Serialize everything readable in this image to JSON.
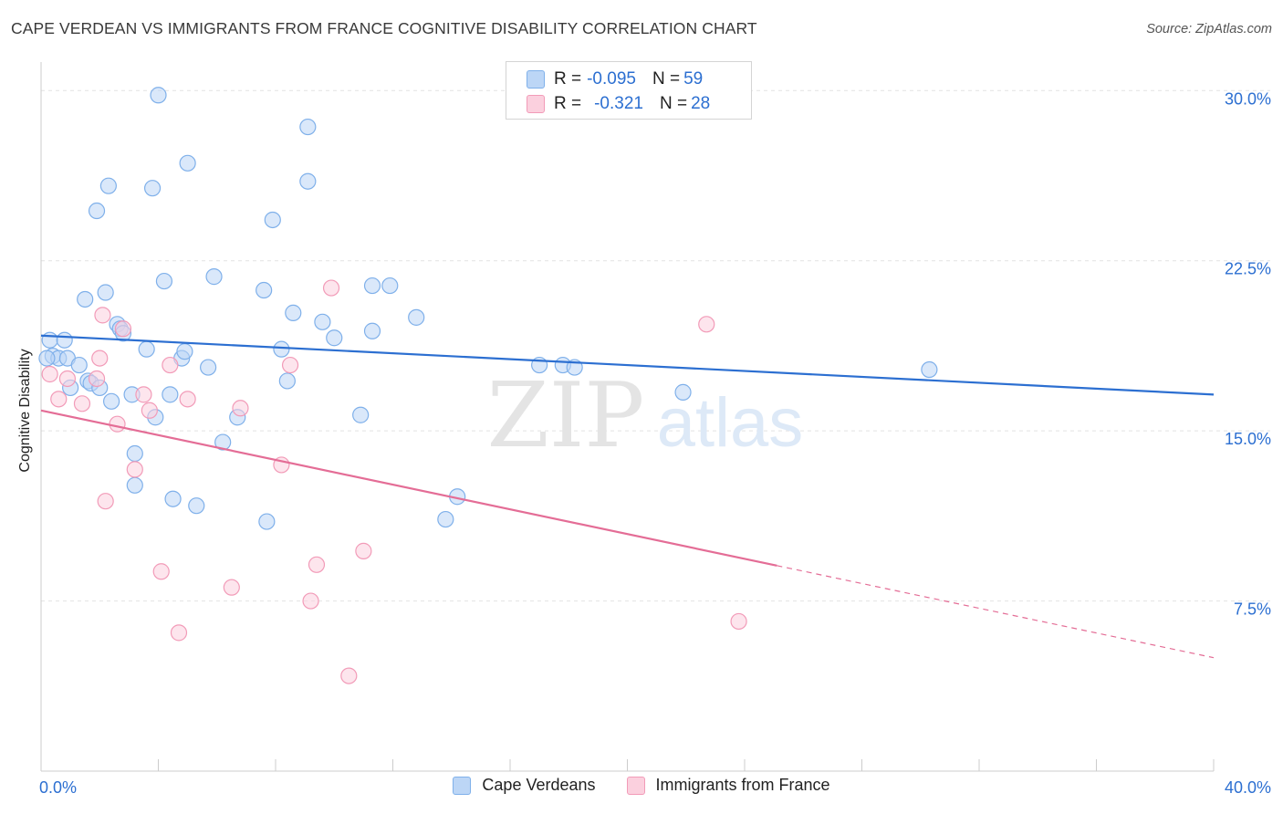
{
  "header": {
    "title": "CAPE VERDEAN VS IMMIGRANTS FROM FRANCE COGNITIVE DISABILITY CORRELATION CHART",
    "source": "Source: ZipAtlas.com"
  },
  "watermark": {
    "zip": "ZIP",
    "atlas": "atlas"
  },
  "stats": [
    {
      "r_label": "R = ",
      "r_value": "-0.095",
      "n_label": "N = ",
      "n_value": "59",
      "color": "#7fb0ea",
      "fill": "#bcd6f6"
    },
    {
      "r_label": "R = ",
      "r_value": "-0.321",
      "n_label": "N = ",
      "n_value": "28",
      "color": "#f29bb8",
      "fill": "#fbd0de"
    }
  ],
  "chart_data": {
    "type": "scatter",
    "title": "CAPE VERDEAN VS IMMIGRANTS FROM FRANCE COGNITIVE DISABILITY CORRELATION CHART",
    "xlabel": "",
    "ylabel": "Cognitive Disability",
    "xlim": [
      0,
      40
    ],
    "ylim": [
      0,
      31.5
    ],
    "x_tick_labels": [
      "0.0%",
      "40.0%"
    ],
    "y_ticks": [
      7.5,
      15.0,
      22.5,
      30.0
    ],
    "y_tick_labels": [
      "7.5%",
      "15.0%",
      "22.5%",
      "30.0%"
    ],
    "grid": true,
    "legend_position": "bottom-center",
    "series": [
      {
        "name": "Cape Verdeans",
        "color": "#7fb0ea",
        "fill": "#bcd6f6",
        "trend_color": "#2c6fd1",
        "trend": {
          "x0": 0,
          "y0": 19.2,
          "x1": 40,
          "y1": 16.6,
          "solid_to": 40
        },
        "points": [
          [
            0.3,
            19.0
          ],
          [
            0.4,
            18.3
          ],
          [
            0.6,
            18.2
          ],
          [
            0.8,
            19.0
          ],
          [
            0.9,
            18.2
          ],
          [
            1.0,
            16.9
          ],
          [
            1.3,
            17.9
          ],
          [
            1.5,
            20.8
          ],
          [
            1.6,
            17.2
          ],
          [
            1.7,
            17.1
          ],
          [
            2.0,
            16.9
          ],
          [
            1.9,
            24.7
          ],
          [
            2.2,
            21.1
          ],
          [
            2.3,
            25.8
          ],
          [
            2.4,
            16.3
          ],
          [
            2.6,
            19.7
          ],
          [
            2.7,
            19.5
          ],
          [
            2.8,
            19.3
          ],
          [
            3.1,
            16.6
          ],
          [
            3.2,
            14.0
          ],
          [
            3.2,
            12.6
          ],
          [
            3.6,
            18.6
          ],
          [
            3.8,
            25.7
          ],
          [
            3.9,
            15.6
          ],
          [
            4.0,
            29.8
          ],
          [
            4.2,
            21.6
          ],
          [
            4.4,
            16.6
          ],
          [
            4.5,
            12.0
          ],
          [
            4.8,
            18.2
          ],
          [
            4.9,
            18.5
          ],
          [
            5.0,
            26.8
          ],
          [
            5.3,
            11.7
          ],
          [
            5.7,
            17.8
          ],
          [
            5.9,
            21.8
          ],
          [
            6.2,
            14.5
          ],
          [
            6.7,
            15.6
          ],
          [
            7.6,
            21.2
          ],
          [
            7.7,
            11.0
          ],
          [
            7.9,
            24.3
          ],
          [
            8.2,
            18.6
          ],
          [
            8.4,
            17.2
          ],
          [
            8.6,
            20.2
          ],
          [
            9.1,
            28.4
          ],
          [
            9.1,
            26.0
          ],
          [
            9.6,
            19.8
          ],
          [
            10.0,
            19.1
          ],
          [
            10.9,
            15.7
          ],
          [
            11.3,
            19.4
          ],
          [
            11.3,
            21.4
          ],
          [
            11.9,
            21.4
          ],
          [
            12.8,
            20.0
          ],
          [
            13.8,
            11.1
          ],
          [
            14.2,
            12.1
          ],
          [
            17.0,
            17.9
          ],
          [
            17.8,
            17.9
          ],
          [
            18.2,
            17.8
          ],
          [
            21.9,
            16.7
          ],
          [
            30.3,
            17.7
          ],
          [
            0.2,
            18.2
          ]
        ]
      },
      {
        "name": "Immigrants from France",
        "color": "#f29bb8",
        "fill": "#fbd0de",
        "trend_color": "#e46d96",
        "trend": {
          "x0": 0,
          "y0": 15.9,
          "x1": 40,
          "y1": 5.0,
          "solid_to": 25.1
        },
        "points": [
          [
            0.3,
            17.5
          ],
          [
            0.6,
            16.4
          ],
          [
            0.9,
            17.3
          ],
          [
            1.4,
            16.2
          ],
          [
            1.9,
            17.3
          ],
          [
            2.0,
            18.2
          ],
          [
            2.1,
            20.1
          ],
          [
            2.2,
            11.9
          ],
          [
            2.6,
            15.3
          ],
          [
            2.8,
            19.5
          ],
          [
            3.2,
            13.3
          ],
          [
            3.5,
            16.6
          ],
          [
            3.7,
            15.9
          ],
          [
            4.1,
            8.8
          ],
          [
            4.4,
            17.9
          ],
          [
            4.7,
            6.1
          ],
          [
            5.0,
            16.4
          ],
          [
            6.5,
            8.1
          ],
          [
            6.8,
            16.0
          ],
          [
            8.2,
            13.5
          ],
          [
            8.5,
            17.9
          ],
          [
            9.2,
            7.5
          ],
          [
            9.4,
            9.1
          ],
          [
            9.9,
            21.3
          ],
          [
            10.5,
            4.2
          ],
          [
            11.0,
            9.7
          ],
          [
            22.7,
            19.7
          ],
          [
            23.8,
            6.6
          ]
        ]
      }
    ]
  }
}
